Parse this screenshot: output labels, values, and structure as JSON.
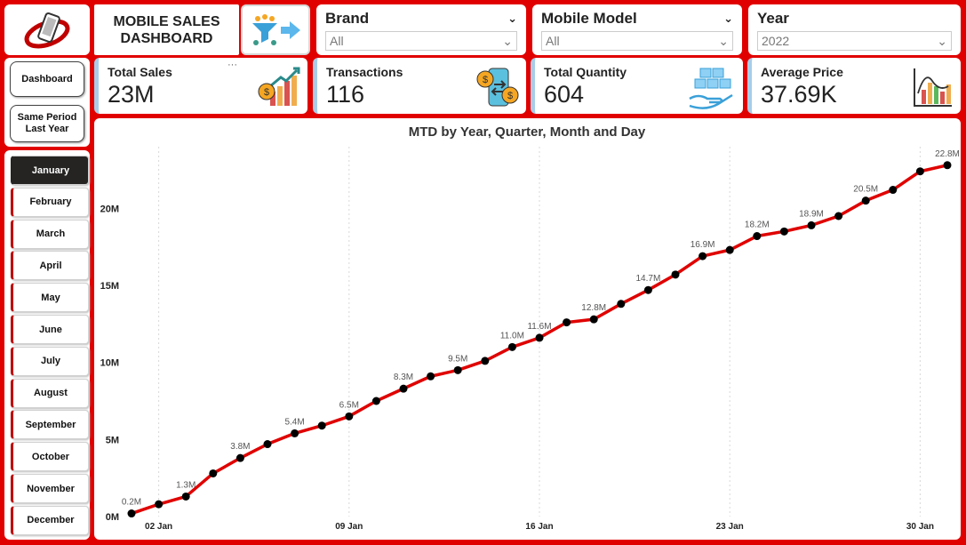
{
  "header": {
    "title_line1": "MOBILE SALES",
    "title_line2": "DASHBOARD"
  },
  "filters": [
    {
      "label": "Brand",
      "value": "All"
    },
    {
      "label": "Mobile Model",
      "value": "All"
    },
    {
      "label": "Year",
      "value": "2022"
    }
  ],
  "kpis": [
    {
      "label": "Total Sales",
      "value": "23M",
      "more": "···"
    },
    {
      "label": "Transactions",
      "value": "116"
    },
    {
      "label": "Total Quantity",
      "value": "604"
    },
    {
      "label": "Average Price",
      "value": "37.69K"
    }
  ],
  "nav": {
    "dashboard": "Dashboard",
    "same_period_1": "Same Period",
    "same_period_2": "Last Year"
  },
  "months": [
    "January",
    "February",
    "March",
    "April",
    "May",
    "June",
    "July",
    "August",
    "September",
    "October",
    "November",
    "December"
  ],
  "selected_month": "January",
  "colors": {
    "accent": "#e10000",
    "line": "#e00000",
    "marker": "#000000"
  },
  "chart_data": {
    "type": "line",
    "title": "MTD by Year, Quarter, Month and Day",
    "x": [
      1,
      2,
      3,
      4,
      5,
      6,
      7,
      8,
      9,
      10,
      11,
      12,
      13,
      14,
      15,
      16,
      17,
      18,
      19,
      20,
      21,
      22,
      23,
      24,
      25,
      26,
      27,
      28,
      29,
      30,
      31
    ],
    "values": [
      0.2,
      0.8,
      1.3,
      2.8,
      3.8,
      4.7,
      5.4,
      5.9,
      6.5,
      7.5,
      8.3,
      9.1,
      9.5,
      10.1,
      11.0,
      11.6,
      12.6,
      12.8,
      13.8,
      14.7,
      15.7,
      16.9,
      17.3,
      18.2,
      18.5,
      18.9,
      19.5,
      20.5,
      21.2,
      22.4,
      22.8
    ],
    "data_labels": {
      "1": "0.2M",
      "3": "1.3M",
      "5": "3.8M",
      "7": "5.4M",
      "9": "6.5M",
      "11": "8.3M",
      "13": "9.5M",
      "15": "11.0M",
      "16": "11.6M",
      "18": "12.8M",
      "20": "14.7M",
      "22": "16.9M",
      "24": "18.2M",
      "26": "18.9M",
      "28": "20.5M",
      "31": "22.8M"
    },
    "x_ticks": [
      {
        "x": 2,
        "label": "02 Jan"
      },
      {
        "x": 9,
        "label": "09 Jan"
      },
      {
        "x": 16,
        "label": "16 Jan"
      },
      {
        "x": 23,
        "label": "23 Jan"
      },
      {
        "x": 30,
        "label": "30 Jan"
      }
    ],
    "y_ticks": [
      {
        "v": 0,
        "label": "0M"
      },
      {
        "v": 5,
        "label": "5M"
      },
      {
        "v": 10,
        "label": "10M"
      },
      {
        "v": 15,
        "label": "15M"
      },
      {
        "v": 20,
        "label": "20M"
      }
    ],
    "xlim": [
      1,
      31
    ],
    "ylim": [
      0,
      24
    ],
    "grid": "vertical dotted"
  }
}
